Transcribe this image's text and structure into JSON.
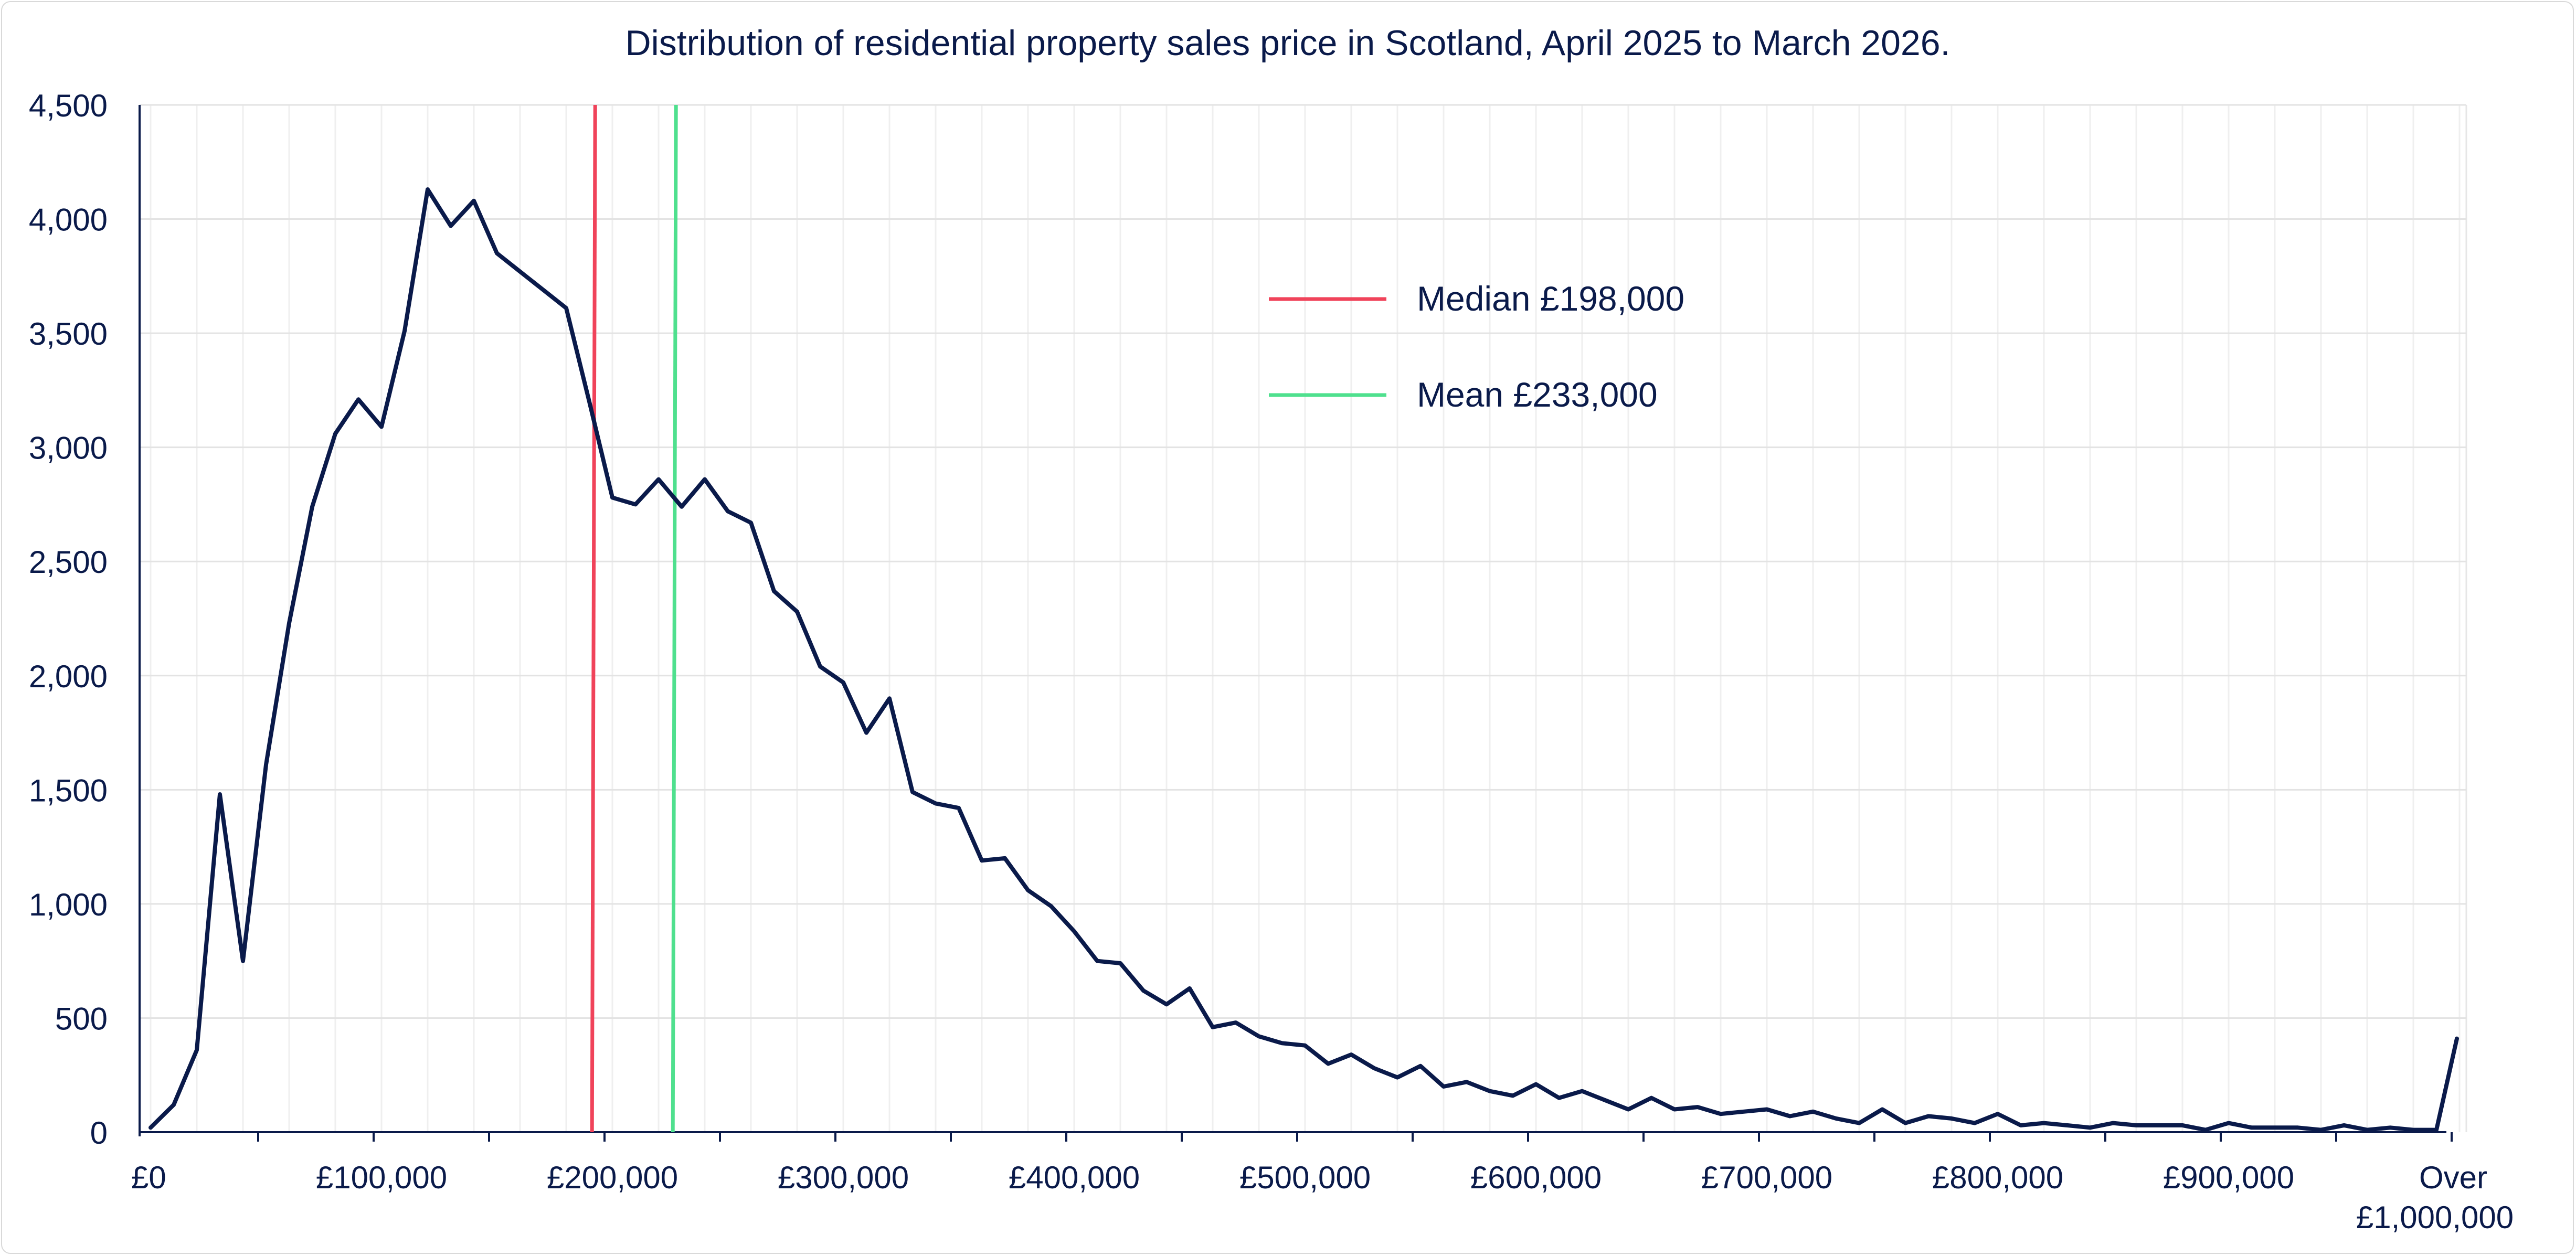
{
  "chart_data": {
    "type": "line",
    "title": "Distribution of residential property sales price in Scotland, April 2025 to March 2026.",
    "xlabel": "",
    "ylabel": "",
    "ylim": [
      0,
      4500
    ],
    "yticks": [
      "0",
      "500",
      "1,000",
      "1,500",
      "2,000",
      "2,500",
      "3,000",
      "3,500",
      "4,000",
      "4,500"
    ],
    "xticks": [
      "£0",
      "£100,000",
      "£200,000",
      "£300,000",
      "£400,000",
      "£500,000",
      "£600,000",
      "£700,000",
      "£800,000",
      "£900,000"
    ],
    "xtick_last": [
      "Over",
      "£1,000,000"
    ],
    "grid": true,
    "legend_position": "top-center",
    "legend": [
      {
        "label": "Median £198,000",
        "color": "#f0435a"
      },
      {
        "label": "Mean £233,000",
        "color": "#4fe08e"
      }
    ],
    "reference_lines": [
      {
        "name": "Median",
        "x": 198000,
        "color": "#f0435a"
      },
      {
        "name": "Mean",
        "x": 233000,
        "color": "#4fe08e"
      }
    ],
    "series": [
      {
        "color": "#0a1a4a",
        "bin_width": 10000,
        "x_start": 0,
        "over_label": "Over £1,000,000",
        "values": [
          20,
          120,
          360,
          1480,
          750,
          1610,
          2230,
          2740,
          3060,
          3210,
          3090,
          3510,
          4130,
          3970,
          4080,
          3850,
          3770,
          3690,
          3610,
          3200,
          2780,
          2750,
          2860,
          2740,
          2860,
          2720,
          2670,
          2370,
          2280,
          2040,
          1970,
          1750,
          1900,
          1490,
          1440,
          1420,
          1190,
          1200,
          1060,
          990,
          880,
          750,
          740,
          620,
          560,
          630,
          460,
          480,
          420,
          390,
          380,
          300,
          340,
          280,
          240,
          290,
          200,
          220,
          180,
          160,
          210,
          150,
          180,
          140,
          100,
          150,
          100,
          110,
          80,
          90,
          100,
          70,
          90,
          60,
          40,
          100,
          40,
          70,
          60,
          40,
          80,
          30,
          40,
          30,
          20,
          40,
          30,
          30,
          30,
          10,
          40,
          20,
          20,
          20,
          10,
          30,
          10,
          20,
          10,
          10,
          410
        ]
      }
    ]
  }
}
